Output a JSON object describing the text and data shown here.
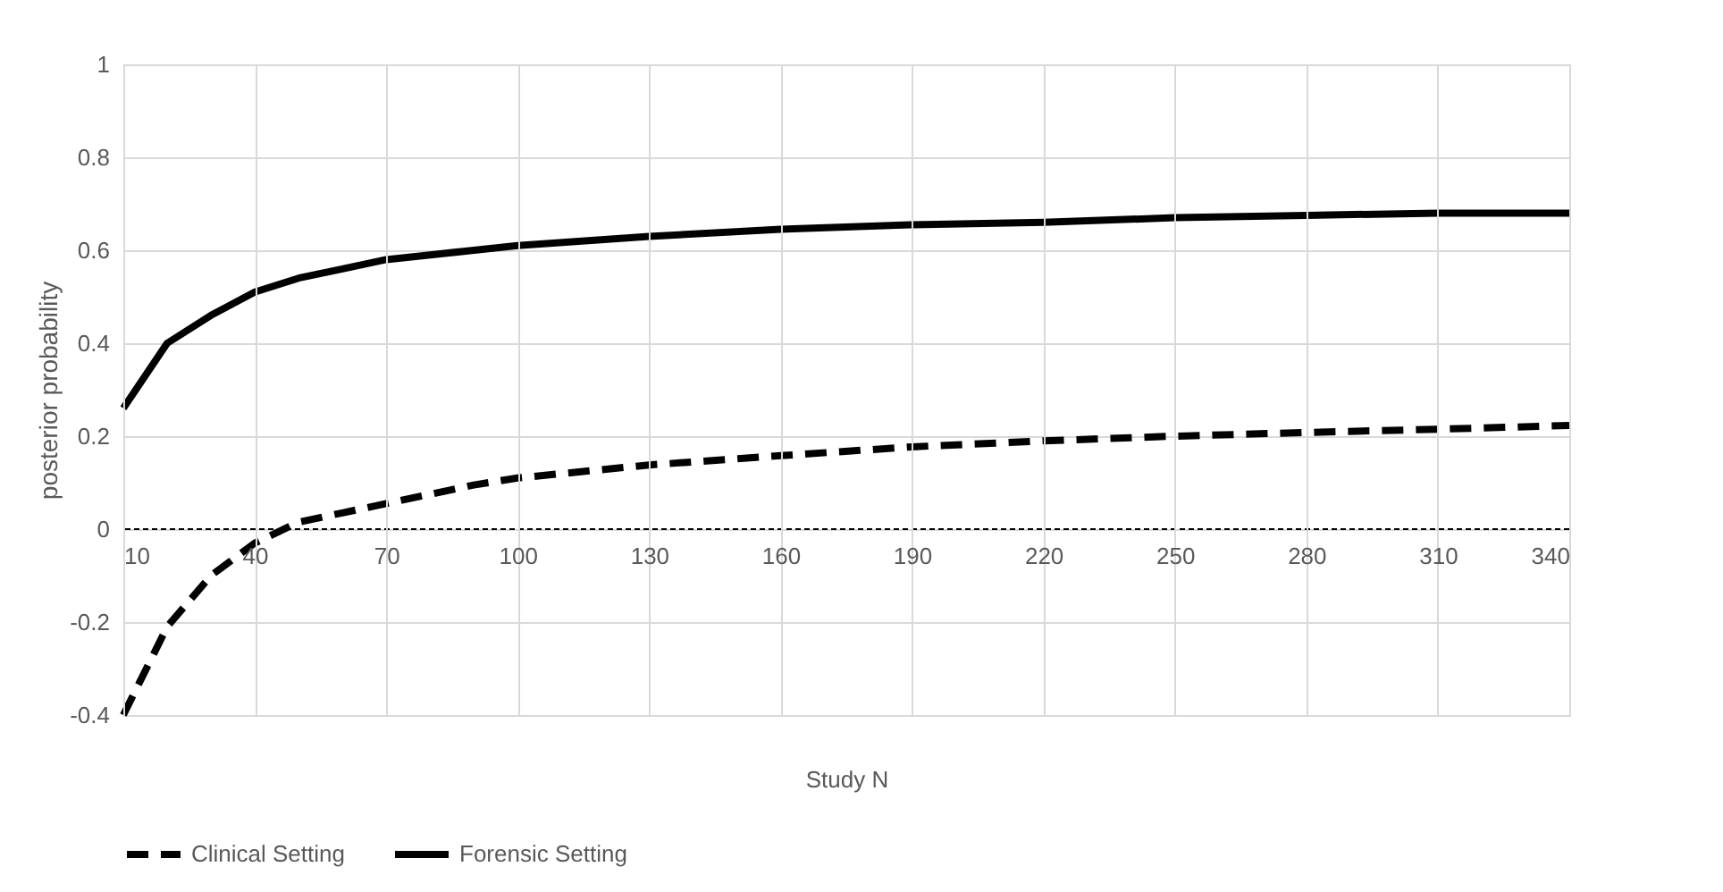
{
  "chart_data": {
    "type": "line",
    "xlabel": "Study N",
    "ylabel": "posterior probability",
    "x": [
      10,
      20,
      30,
      40,
      50,
      60,
      70,
      80,
      90,
      100,
      130,
      160,
      190,
      220,
      250,
      280,
      310,
      340
    ],
    "series": [
      {
        "name": "Clinical Setting",
        "color": "#000000",
        "line_style": "dashed",
        "values": [
          -0.4,
          -0.21,
          -0.1,
          -0.03,
          0.015,
          0.035,
          0.055,
          0.075,
          0.095,
          0.11,
          0.138,
          0.158,
          0.177,
          0.19,
          0.2,
          0.208,
          0.215,
          0.223
        ]
      },
      {
        "name": "Forensic Setting",
        "color": "#000000",
        "line_style": "solid",
        "values": [
          0.26,
          0.4,
          0.46,
          0.51,
          0.54,
          0.56,
          0.58,
          0.59,
          0.6,
          0.61,
          0.63,
          0.645,
          0.655,
          0.66,
          0.67,
          0.675,
          0.68,
          0.68
        ]
      }
    ],
    "xlim": [
      10,
      340
    ],
    "xticks": [
      10,
      40,
      70,
      100,
      130,
      160,
      190,
      220,
      250,
      280,
      310,
      340
    ],
    "ylim": [
      -0.4,
      1
    ],
    "yticks": [
      -0.4,
      -0.2,
      0,
      0.2,
      0.4,
      0.6,
      0.8,
      1
    ],
    "grid": true,
    "legend": "bottom",
    "marker": "none",
    "ref_lines": [
      {
        "axis": "y",
        "value": 0,
        "color": "#000000",
        "line_style": "dashed"
      }
    ]
  }
}
